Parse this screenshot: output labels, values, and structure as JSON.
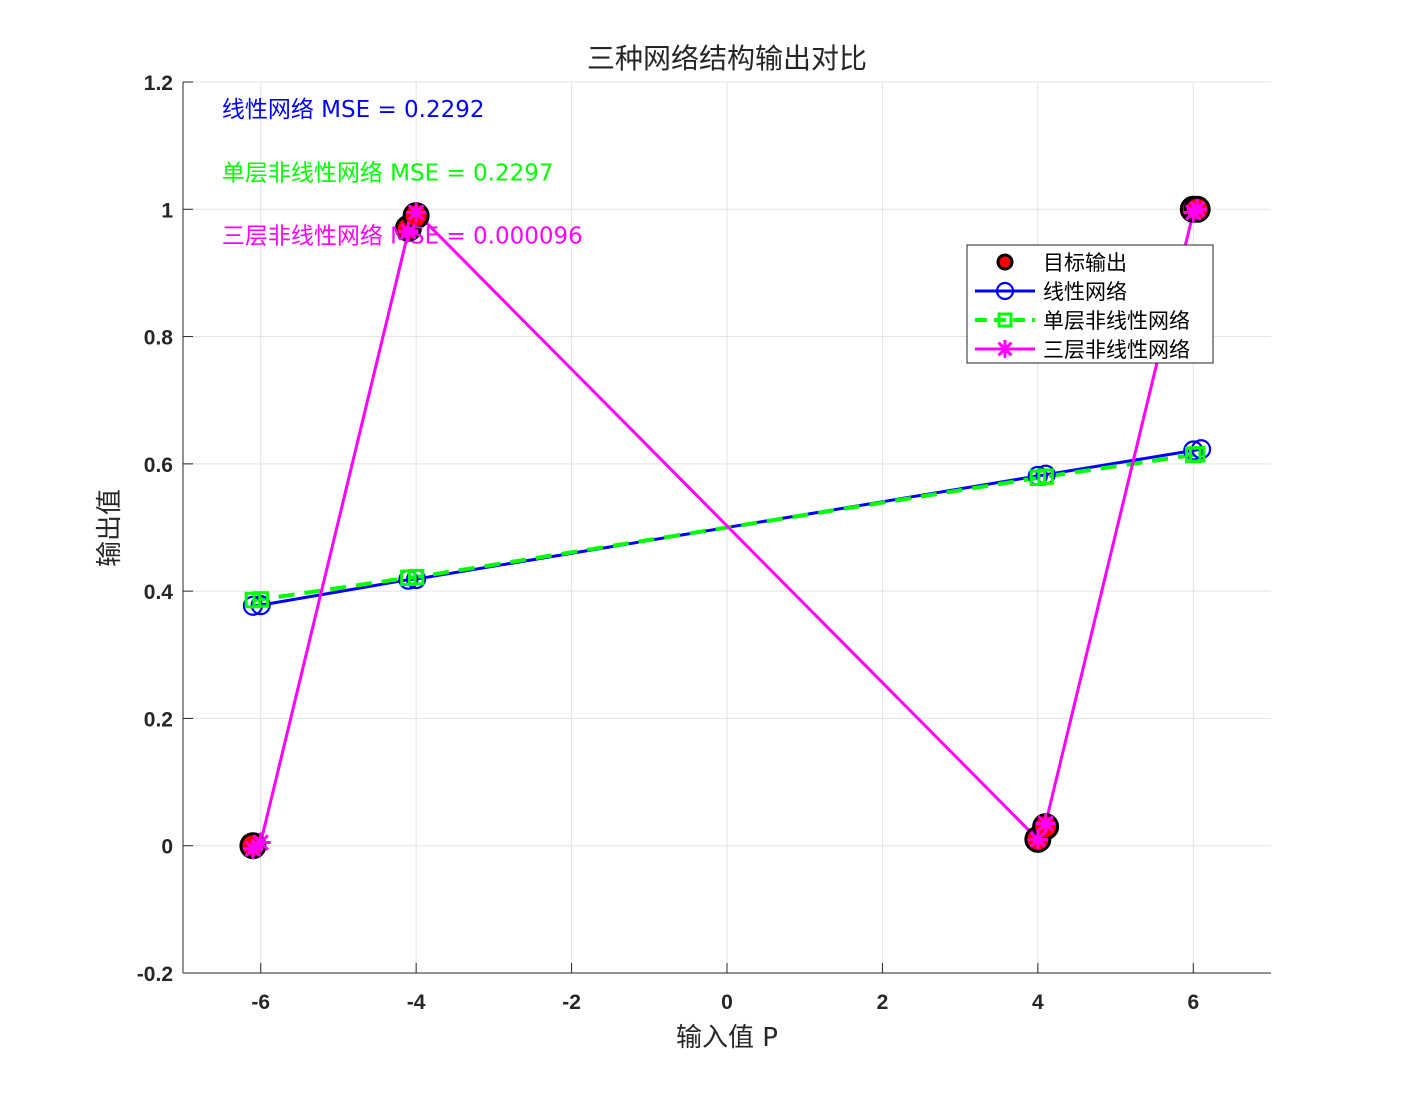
{
  "chart_data": {
    "type": "line",
    "title": "三种网络结构输出对比",
    "xlabel": "输入值 P",
    "ylabel": "输出值",
    "xlim": [
      -7,
      7
    ],
    "ylim": [
      -0.2,
      1.2
    ],
    "xticks": [
      -6,
      -4,
      -2,
      0,
      2,
      4,
      6
    ],
    "yticks": [
      -0.2,
      0,
      0.2,
      0.4,
      0.6,
      0.8,
      1,
      1.2
    ],
    "xtick_labels": [
      "-6",
      "-4",
      "-2",
      "0",
      "2",
      "4",
      "6"
    ],
    "ytick_labels": [
      "-0.2",
      "0",
      "0.2",
      "0.4",
      "0.6",
      "0.8",
      "1",
      "1.2"
    ],
    "grid": true,
    "legend_position": "upper-right",
    "series": [
      {
        "name": "目标输出",
        "style": "marker-only",
        "marker": "filled-circle",
        "color": "#000000",
        "fill": "#ff0000",
        "x": [
          -6.1,
          -4.1,
          -4.0,
          4.0,
          4.1,
          6.0,
          6.05
        ],
        "y": [
          0.0,
          0.97,
          0.99,
          0.01,
          0.03,
          1.0,
          1.0
        ]
      },
      {
        "name": "线性网络",
        "style": "solid",
        "marker": "open-circle",
        "color": "#0000ff",
        "x": [
          -6.1,
          -6.0,
          -4.1,
          -4.0,
          4.0,
          4.1,
          6.0,
          6.1
        ],
        "y": [
          0.377,
          0.378,
          0.418,
          0.419,
          0.581,
          0.583,
          0.621,
          0.623
        ]
      },
      {
        "name": "单层非线性网络",
        "style": "dashed",
        "marker": "open-square",
        "color": "#00ff00",
        "x": [
          -6.1,
          -6.0,
          -4.1,
          -4.0,
          4.0,
          4.1,
          6.0,
          6.05
        ],
        "y": [
          0.386,
          0.387,
          0.421,
          0.422,
          0.578,
          0.58,
          0.614,
          0.615
        ]
      },
      {
        "name": "三层非线性网络",
        "style": "solid",
        "marker": "asterisk",
        "color": "#ff00ff",
        "x": [
          -6.1,
          -6.0,
          -4.1,
          -4.0,
          4.0,
          4.1,
          6.0,
          6.05
        ],
        "y": [
          -0.005,
          0.005,
          0.965,
          0.995,
          0.01,
          0.035,
          0.995,
          1.0
        ]
      }
    ],
    "annotations": [
      {
        "text": "线性网络 MSE = 0.2292",
        "color": "#0000ff",
        "x": -6.5,
        "y": 1.145
      },
      {
        "text": "单层非线性网络 MSE = 0.2297",
        "color": "#00ff00",
        "x": -6.5,
        "y": 1.045
      },
      {
        "text": "三层非线性网络 MSE = 0.000096",
        "color": "#ff00ff",
        "x": -6.5,
        "y": 0.946
      }
    ]
  }
}
